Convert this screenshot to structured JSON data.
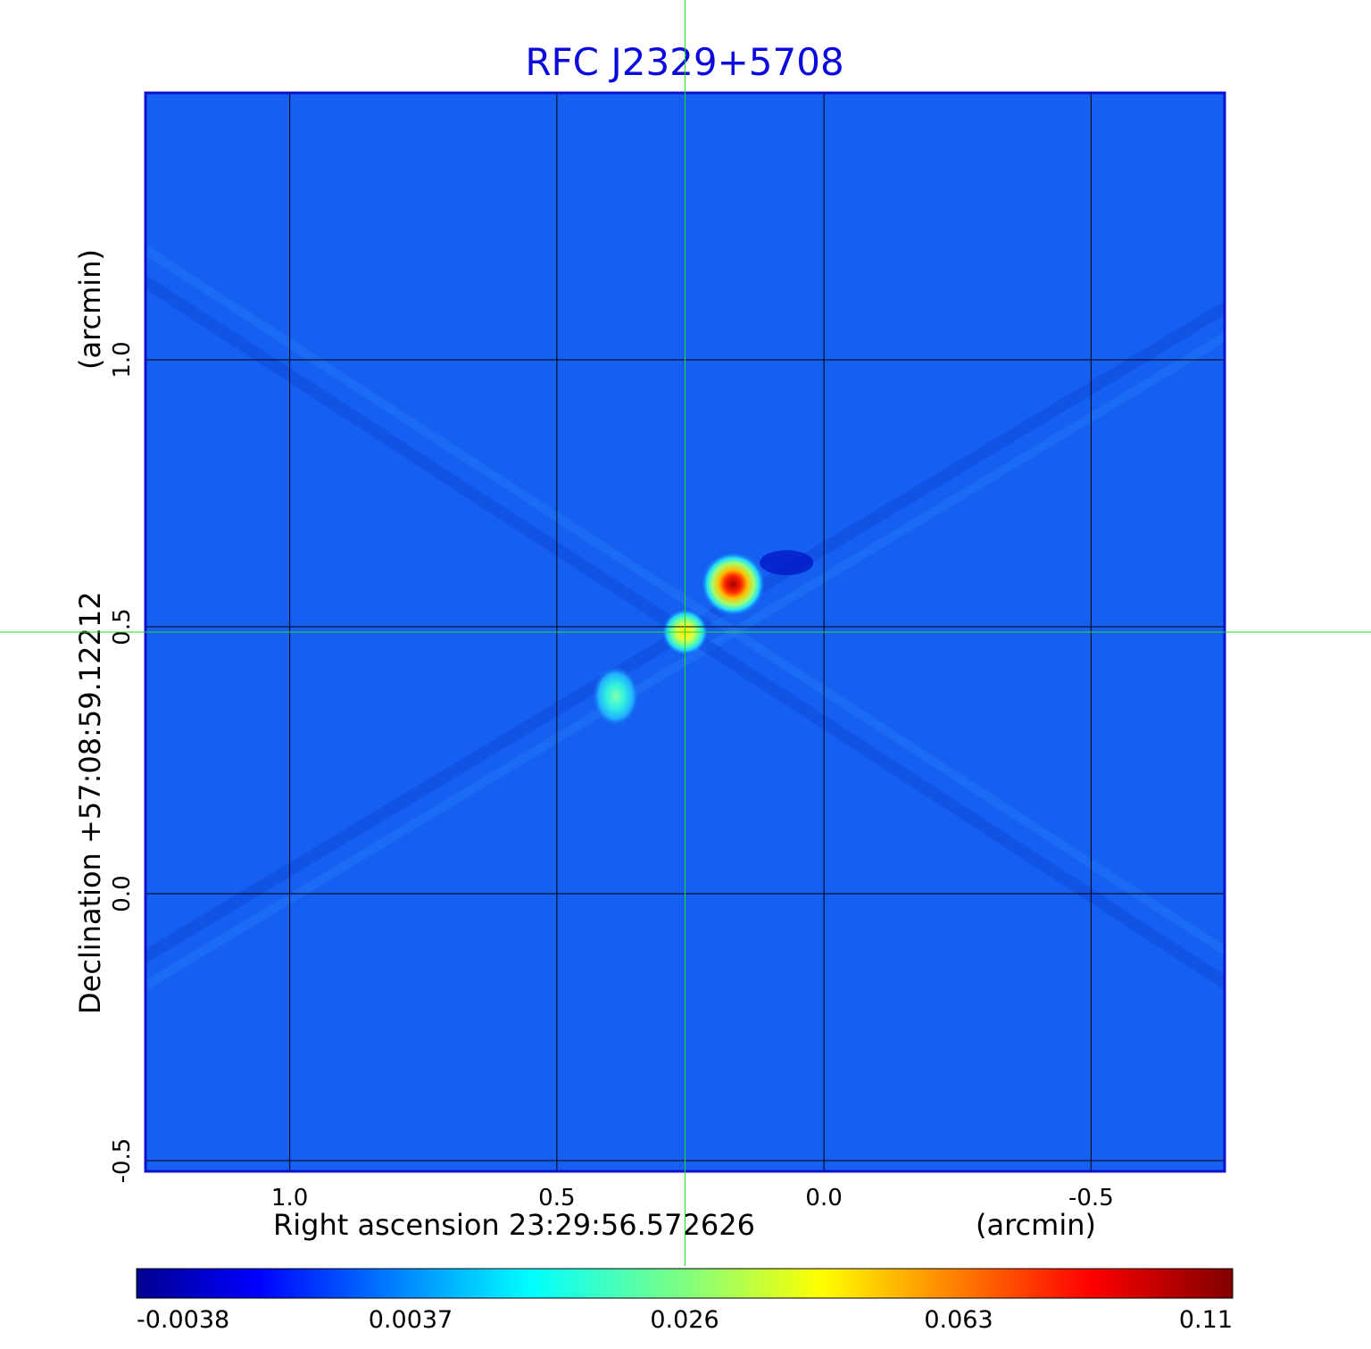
{
  "chart_data": {
    "type": "heatmap",
    "title": "RFC J2329+5708",
    "xlabel": "Right ascension  23:29:56.572626",
    "xlabel_unit": "(arcmin)",
    "ylabel": "Declination  +57:08:59.12212",
    "ylabel_unit": "(arcmin)",
    "x_ticks": [
      1.0,
      0.5,
      0.0,
      -0.5
    ],
    "x_tick_labels": [
      "1.0",
      "0.5",
      "0.0",
      "-0.5"
    ],
    "y_ticks": [
      1.0,
      0.5,
      0.0,
      -0.5
    ],
    "y_tick_labels": [
      "1.0",
      "0.5",
      "0.0",
      "-0.5"
    ],
    "xlim": [
      1.27,
      -0.75
    ],
    "ylim": [
      -0.52,
      1.5
    ],
    "x_reversed": true,
    "grid": true,
    "crosshair": {
      "x": 0.26,
      "y": 0.49,
      "color": "#22dd22"
    },
    "colorbar": {
      "tick_labels": [
        "-0.0038",
        "0.0037",
        "0.026",
        "0.063",
        "0.11"
      ],
      "min": -0.0038,
      "max": 0.11,
      "colormap": "jet"
    },
    "sources": [
      {
        "x": 0.17,
        "y": 0.58,
        "peak": 0.11
      },
      {
        "x": 0.26,
        "y": 0.49,
        "peak": 0.055
      },
      {
        "x": 0.39,
        "y": 0.37,
        "peak": 0.022
      }
    ],
    "colors": {
      "title": "#0a0adc",
      "frame": "#1010d0",
      "background_map": "#1560f0",
      "grid": "#000000"
    }
  }
}
